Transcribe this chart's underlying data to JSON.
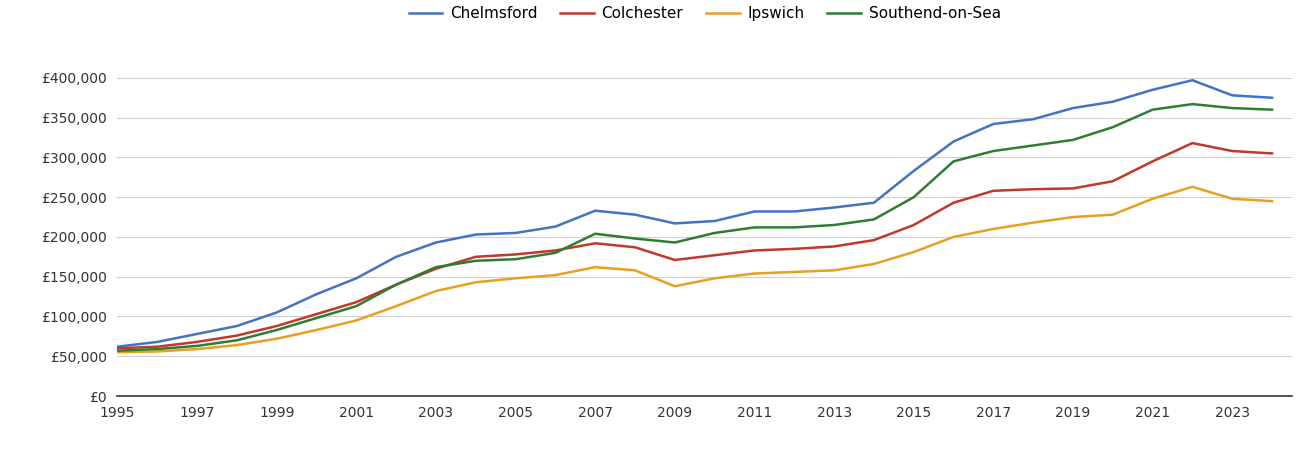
{
  "years": [
    1995,
    1996,
    1997,
    1998,
    1999,
    2000,
    2001,
    2002,
    2003,
    2004,
    2005,
    2006,
    2007,
    2008,
    2009,
    2010,
    2011,
    2012,
    2013,
    2014,
    2015,
    2016,
    2017,
    2018,
    2019,
    2020,
    2021,
    2022,
    2023,
    2024
  ],
  "chelmsford": [
    62000,
    68000,
    78000,
    88000,
    105000,
    128000,
    148000,
    175000,
    193000,
    203000,
    205000,
    213000,
    233000,
    228000,
    217000,
    220000,
    232000,
    232000,
    237000,
    243000,
    283000,
    320000,
    342000,
    348000,
    362000,
    370000,
    385000,
    397000,
    378000,
    375000
  ],
  "colchester": [
    60000,
    62000,
    68000,
    76000,
    88000,
    103000,
    118000,
    140000,
    160000,
    175000,
    178000,
    183000,
    192000,
    187000,
    171000,
    177000,
    183000,
    185000,
    188000,
    196000,
    215000,
    243000,
    258000,
    260000,
    261000,
    270000,
    295000,
    318000,
    308000,
    305000
  ],
  "ipswich": [
    55000,
    56000,
    59000,
    64000,
    72000,
    83000,
    95000,
    113000,
    132000,
    143000,
    148000,
    152000,
    162000,
    158000,
    138000,
    148000,
    154000,
    156000,
    158000,
    166000,
    181000,
    200000,
    210000,
    218000,
    225000,
    228000,
    248000,
    263000,
    248000,
    245000
  ],
  "southend_on_sea": [
    57000,
    59000,
    63000,
    70000,
    83000,
    98000,
    113000,
    140000,
    162000,
    170000,
    172000,
    180000,
    204000,
    198000,
    193000,
    205000,
    212000,
    212000,
    215000,
    222000,
    250000,
    295000,
    308000,
    315000,
    322000,
    338000,
    360000,
    367000,
    362000,
    360000
  ],
  "colors": {
    "chelmsford": "#4472c4",
    "colchester": "#c0392b",
    "ipswich": "#e8a020",
    "southend_on_sea": "#2e7d32"
  },
  "ylim": [
    0,
    430000
  ],
  "yticks": [
    0,
    50000,
    100000,
    150000,
    200000,
    250000,
    300000,
    350000,
    400000
  ],
  "xlim": [
    1995,
    2024.5
  ],
  "xticks": [
    1995,
    1997,
    1999,
    2001,
    2003,
    2005,
    2007,
    2009,
    2011,
    2013,
    2015,
    2017,
    2019,
    2021,
    2023
  ],
  "legend_labels": [
    "Chelmsford",
    "Colchester",
    "Ipswich",
    "Southend-on-Sea"
  ],
  "line_width": 1.8
}
